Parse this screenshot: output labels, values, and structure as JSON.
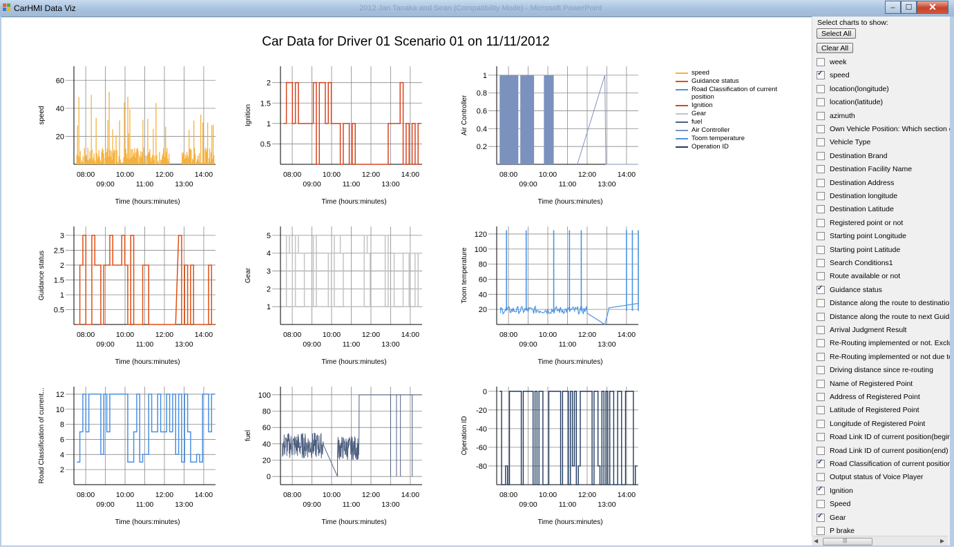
{
  "window": {
    "title": "CarHMI Data Viz",
    "background_title": "2012 Jan Tanaka and Sean (Compatibility Mode) - Microsoft PowerPoint",
    "buttons": {
      "minimize": "–",
      "maximize": "☐",
      "close": "✕"
    }
  },
  "main_title": "Car Data for Driver 01 Scenario 01 on 11/11/2012",
  "colors": {
    "speed": "#f5b13d",
    "guidance_status": "#e14d12",
    "road_class": "#4a90e2",
    "ignition": "#d8431e",
    "gear": "#c4c4c4",
    "fuel": "#4d5f80",
    "air_controller": "#7b92bf",
    "toom_temperature": "#4b93e2",
    "operation_id": "#1f3a60"
  },
  "legend": [
    {
      "label": "speed",
      "color_key": "speed"
    },
    {
      "label": "Guidance status",
      "color_key": "guidance_status"
    },
    {
      "label": "Road Classification of current position",
      "color_key": "road_class"
    },
    {
      "label": "Ignition",
      "color_key": "ignition"
    },
    {
      "label": "Gear",
      "color_key": "gear"
    },
    {
      "label": "fuel",
      "color_key": "fuel"
    },
    {
      "label": "Air Controller",
      "color_key": "air_controller"
    },
    {
      "label": "Toom temperature",
      "color_key": "toom_temperature"
    },
    {
      "label": "Operation ID",
      "color_key": "operation_id"
    }
  ],
  "chart_data": [
    {
      "type": "line",
      "ylabel": "speed",
      "xlabel": "Time (hours:minutes)",
      "x_ticks_top": [
        "08:00",
        "10:00",
        "12:00",
        "14:00"
      ],
      "x_ticks_bottom": [
        "09:00",
        "11:00",
        "13:00"
      ],
      "y_ticks": [
        20,
        40,
        60
      ],
      "ylim": [
        0,
        70
      ],
      "color_key": "speed",
      "style": "spiky",
      "series": [
        {
          "x_hours": [
            7.67,
            7.8,
            8.1,
            9.2,
            9.8,
            10.3,
            11.3,
            12.0,
            12.3,
            13.2,
            13.6,
            14.0
          ],
          "values": [
            44,
            52,
            30,
            28,
            48,
            38,
            25,
            30,
            5,
            40,
            22,
            27
          ]
        }
      ]
    },
    {
      "type": "line",
      "ylabel": "Ignition",
      "xlabel": "Time (hours:minutes)",
      "x_ticks_top": [
        "08:00",
        "10:00",
        "12:00",
        "14:00"
      ],
      "x_ticks_bottom": [
        "09:00",
        "11:00",
        "13:00"
      ],
      "y_ticks": [
        0.5,
        1,
        1.5,
        2
      ],
      "ylim": [
        0,
        2.4
      ],
      "color_key": "ignition",
      "style": "step",
      "series": [
        {
          "values": [
            1,
            2,
            1,
            0,
            1,
            2,
            1,
            0,
            1,
            2,
            1,
            0,
            1,
            1,
            0,
            2,
            1,
            2,
            1
          ]
        }
      ]
    },
    {
      "type": "area",
      "ylabel": "Air Controller",
      "xlabel": "Time (hours:minutes)",
      "x_ticks_top": [
        "08:00",
        "10:00",
        "12:00",
        "14:00"
      ],
      "x_ticks_bottom": [
        "09:00",
        "11:00",
        "13:00"
      ],
      "y_ticks": [
        0.2,
        0.4,
        0.6,
        0.8,
        1
      ],
      "ylim": [
        0,
        1.1
      ],
      "color_key": "air_controller",
      "style": "blocks",
      "series": [
        {
          "x_hours": [
            [
              7.55,
              8.5
            ],
            [
              8.6,
              9.3
            ],
            [
              9.8,
              10.3
            ]
          ],
          "values": [
            1,
            1,
            1
          ]
        }
      ]
    },
    {
      "type": "line",
      "ylabel": "Guidance status",
      "xlabel": "Time (hours:minutes)",
      "x_ticks_top": [
        "08:00",
        "10:00",
        "12:00",
        "14:00"
      ],
      "x_ticks_bottom": [
        "09:00",
        "11:00",
        "13:00"
      ],
      "y_ticks": [
        0.5,
        1,
        1.5,
        2,
        2.5,
        3
      ],
      "ylim": [
        0,
        3.3
      ],
      "color_key": "guidance_status",
      "style": "step",
      "series": [
        {
          "values": [
            2,
            0,
            3,
            0,
            2,
            3,
            2,
            0,
            2,
            3,
            2,
            0,
            2,
            0,
            3,
            0,
            2,
            2,
            0
          ]
        }
      ]
    },
    {
      "type": "line",
      "ylabel": "Gear",
      "xlabel": "Time (hours:minutes)",
      "x_ticks_top": [
        "08:00",
        "10:00",
        "12:00",
        "14:00"
      ],
      "x_ticks_bottom": [
        "09:00",
        "11:00",
        "13:00"
      ],
      "y_ticks": [
        1,
        2,
        3,
        4,
        5
      ],
      "ylim": [
        0,
        5.5
      ],
      "color_key": "gear",
      "style": "step",
      "series": [
        {
          "values": [
            1,
            4,
            1,
            5,
            1,
            4,
            1,
            5,
            1,
            4,
            1,
            5,
            1,
            4,
            1,
            5,
            1,
            4,
            1
          ]
        }
      ]
    },
    {
      "type": "line",
      "ylabel": "Toom temperature",
      "xlabel": "Time (hours:minutes)",
      "x_ticks_top": [
        "08:00",
        "10:00",
        "12:00",
        "14:00"
      ],
      "x_ticks_bottom": [
        "09:00",
        "11:00",
        "13:00"
      ],
      "y_ticks": [
        20,
        40,
        60,
        80,
        100,
        120
      ],
      "ylim": [
        0,
        130
      ],
      "color_key": "toom_temperature",
      "style": "spikes",
      "series": [
        {
          "spikes_x_hours": [
            7.9,
            8.9,
            10.3,
            11.1,
            11.7,
            14.0,
            14.3,
            14.6
          ],
          "values": [
            125,
            125,
            125,
            125,
            125,
            125,
            125,
            125
          ]
        }
      ]
    },
    {
      "type": "line",
      "ylabel": "Road  Classification  of  current...",
      "xlabel": "Time (hours:minutes)",
      "x_ticks_top": [
        "08:00",
        "10:00",
        "12:00",
        "14:00"
      ],
      "x_ticks_bottom": [
        "09:00",
        "11:00",
        "13:00"
      ],
      "y_ticks": [
        2,
        4,
        6,
        8,
        10,
        12
      ],
      "ylim": [
        0,
        13
      ],
      "color_key": "road_class",
      "style": "step",
      "series": [
        {
          "values": [
            12,
            7,
            12,
            3,
            12,
            7,
            3,
            12,
            4,
            3,
            12,
            7,
            12,
            4,
            12
          ]
        }
      ]
    },
    {
      "type": "line",
      "ylabel": "fuel",
      "xlabel": "Time (hours:minutes)",
      "x_ticks_top": [
        "08:00",
        "10:00",
        "12:00",
        "14:00"
      ],
      "x_ticks_bottom": [
        "09:00",
        "11:00",
        "13:00"
      ],
      "y_ticks": [
        0,
        20,
        40,
        60,
        80,
        100
      ],
      "ylim": [
        -10,
        110
      ],
      "color_key": "fuel",
      "style": "noise",
      "series": [
        {
          "values": [
            50,
            30,
            40,
            20,
            0,
            40,
            30,
            100,
            100,
            100
          ]
        }
      ]
    },
    {
      "type": "line",
      "ylabel": "Operation ID",
      "xlabel": "Time (hours:minutes)",
      "x_ticks_top": [
        "08:00",
        "10:00",
        "12:00",
        "14:00"
      ],
      "x_ticks_bottom": [
        "09:00",
        "11:00",
        "13:00"
      ],
      "y_ticks": [
        -80,
        -60,
        -40,
        -20,
        0
      ],
      "ylim": [
        -100,
        5
      ],
      "color_key": "operation_id",
      "style": "dense",
      "series": [
        {
          "values": [
            0,
            -100,
            0,
            -100,
            0,
            -80,
            0,
            -100,
            0,
            -100,
            0
          ]
        }
      ]
    }
  ],
  "sidebar": {
    "header": "Select charts to show:",
    "select_all": "Select All",
    "clear_all": "Clear All",
    "items": [
      {
        "label": "week",
        "checked": false
      },
      {
        "label": "speed",
        "checked": true
      },
      {
        "label": "location(longitude)",
        "checked": false
      },
      {
        "label": "location(latitude)",
        "checked": false
      },
      {
        "label": "azimuth",
        "checked": false
      },
      {
        "label": "Own Vehicle Position: Which section of the road",
        "checked": false
      },
      {
        "label": "Vehicle Type",
        "checked": false
      },
      {
        "label": "Destination Brand",
        "checked": false
      },
      {
        "label": "Destination Facility Name",
        "checked": false
      },
      {
        "label": "Destination Address",
        "checked": false
      },
      {
        "label": "Destination longitude",
        "checked": false
      },
      {
        "label": "Destination Latitude",
        "checked": false
      },
      {
        "label": "Registered point or not",
        "checked": false
      },
      {
        "label": "Starting point Longitude",
        "checked": false
      },
      {
        "label": "Starting point Latitude",
        "checked": false
      },
      {
        "label": "Search Conditions1",
        "checked": false
      },
      {
        "label": "Route available or not",
        "checked": false
      },
      {
        "label": "Guidance status",
        "checked": true
      },
      {
        "label": "Distance along the route to destination",
        "checked": false
      },
      {
        "label": "Distance along the route to next Guidance",
        "checked": false
      },
      {
        "label": "Arrival Judgment Result",
        "checked": false
      },
      {
        "label": "Re-Routing implemented or not. Excluding",
        "checked": false
      },
      {
        "label": "Re-Routing implemented or not due to detour",
        "checked": false
      },
      {
        "label": "Driving distance since re-routing",
        "checked": false
      },
      {
        "label": "Name of Registered Point",
        "checked": false
      },
      {
        "label": "Address of Registered Point",
        "checked": false
      },
      {
        "label": "Latitude of Registered Point",
        "checked": false
      },
      {
        "label": "Longitude of Registered Point",
        "checked": false
      },
      {
        "label": "Road Link ID of current position(begin)",
        "checked": false
      },
      {
        "label": "Road Link ID of current position(end)",
        "checked": false
      },
      {
        "label": "Road Classification of current position",
        "checked": true
      },
      {
        "label": "Output status of Voice Player",
        "checked": false
      },
      {
        "label": "Ignition",
        "checked": true
      },
      {
        "label": "Speed",
        "checked": false
      },
      {
        "label": "Gear",
        "checked": true
      },
      {
        "label": "P brake",
        "checked": false
      }
    ],
    "scrollbar": {
      "left_arrow": "◀",
      "right_arrow": "▶",
      "grip": "|||"
    }
  }
}
